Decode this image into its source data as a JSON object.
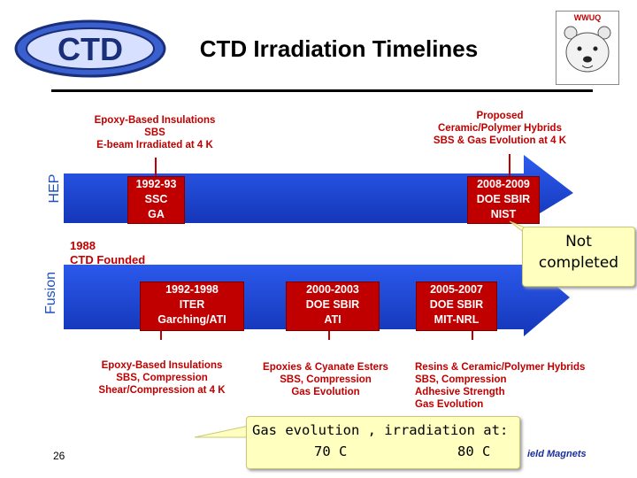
{
  "title": "CTD Irradiation Timelines",
  "logo_text": "CTD",
  "corner_badge_text": "WWUQ",
  "slide_number": "26",
  "footer_partial": "ield Magnets",
  "hep": {
    "axis_label": "HEP",
    "left_caption": [
      "Epoxy-Based Insulations",
      "SBS",
      "E-beam Irradiated at 4 K"
    ],
    "right_caption": [
      "Proposed",
      "Ceramic/Polymer Hybrids",
      "SBS & Gas Evolution at 4 K"
    ],
    "box1": [
      "1992-93",
      "SSC",
      "GA"
    ],
    "box2": [
      "2008-2009",
      "DOE SBIR",
      "NIST"
    ]
  },
  "fusion": {
    "axis_label": "Fusion",
    "founded": [
      "1988",
      "CTD Founded"
    ],
    "box1": [
      "1992-1998",
      "ITER",
      "Garching/ATI"
    ],
    "box2": [
      "2000-2003",
      "DOE SBIR",
      "ATI"
    ],
    "box3": [
      "2005-2007",
      "DOE SBIR",
      "MIT-NRL"
    ],
    "caption1": [
      "Epoxy-Based Insulations",
      "SBS, Compression",
      "Shear/Compression at 4 K"
    ],
    "caption2": [
      "Epoxies & Cyanate Esters",
      "SBS, Compression",
      "Gas Evolution"
    ],
    "caption3": [
      "Resins & Ceramic/Polymer Hybrids",
      "SBS, Compression",
      "Adhesive Strength",
      "Gas Evolution"
    ]
  },
  "notes": {
    "not_completed": [
      "Not",
      "completed"
    ],
    "gas_evolution": "Gas evolution , irradiation at:",
    "temp_left": "70 C",
    "temp_right": "80 C"
  },
  "colors": {
    "arrow_blue": "#1a46e0",
    "box_red": "#c00000",
    "caption_red": "#c00000",
    "note_bg": "#ffffc0"
  }
}
